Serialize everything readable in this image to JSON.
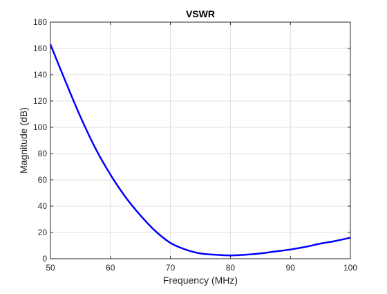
{
  "chart_data": {
    "type": "line",
    "title": "VSWR",
    "xlabel": "Frequency (MHz)",
    "ylabel": "Magnitude (dB)",
    "xlim": [
      50,
      100
    ],
    "ylim": [
      0,
      180
    ],
    "xticks": [
      50,
      60,
      70,
      80,
      90,
      100
    ],
    "yticks": [
      0,
      20,
      40,
      60,
      80,
      100,
      120,
      140,
      160,
      180
    ],
    "grid": true,
    "series": [
      {
        "color": "#0000ff",
        "x": [
          50,
          52.5,
          55,
          57.5,
          60,
          62.5,
          65,
          67.5,
          70,
          72.5,
          75,
          77.5,
          80,
          82.5,
          85,
          87.5,
          90,
          92.5,
          95,
          97.5,
          100
        ],
        "y": [
          163,
          135,
          108,
          84,
          64,
          47,
          33,
          21,
          12,
          7,
          4,
          3,
          2.5,
          3,
          4,
          5.5,
          7,
          9,
          11.5,
          13.5,
          16
        ]
      }
    ]
  }
}
